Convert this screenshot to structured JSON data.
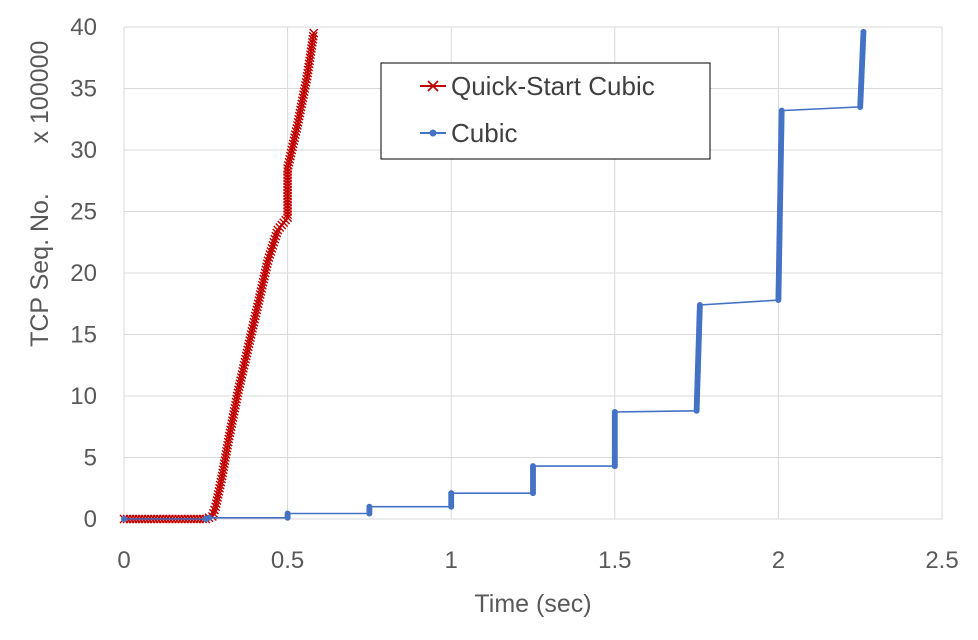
{
  "chart_data": {
    "type": "scatter",
    "title": "",
    "xlabel": "Time (sec)",
    "ylabel": "TCP Seq. No.",
    "yscale_label": "x 100000",
    "xlim": [
      0,
      2.5
    ],
    "ylim": [
      0,
      40
    ],
    "xticks": [
      "0",
      "0.5",
      "1",
      "1.5",
      "2",
      "2.5"
    ],
    "yticks": [
      "0",
      "5",
      "10",
      "15",
      "20",
      "25",
      "30",
      "35",
      "40"
    ],
    "grid": true,
    "legend_position": "top-center",
    "series": [
      {
        "name": "Quick-Start Cubic",
        "color": "#c00000",
        "marker": "x",
        "x": [
          0,
          0.25,
          0.27,
          0.28,
          0.3,
          0.32,
          0.35,
          0.38,
          0.41,
          0.44,
          0.47,
          0.5,
          0.5,
          0.53,
          0.56,
          0.58
        ],
        "y": [
          0,
          0,
          0.2,
          1.0,
          3.5,
          6.5,
          10.5,
          14,
          17.5,
          21,
          23.5,
          24.5,
          28.5,
          32,
          36,
          39.5
        ]
      },
      {
        "name": "Cubic",
        "color": "#4472c4",
        "marker": "dot",
        "x": [
          0,
          0.25,
          0.26,
          0.5,
          0.5,
          0.75,
          0.75,
          1.0,
          1.0,
          1.25,
          1.25,
          1.5,
          1.5,
          1.75,
          1.76,
          2.0,
          2.01,
          2.25,
          2.26
        ],
        "y": [
          0,
          0,
          0.1,
          0.1,
          0.45,
          0.45,
          1.0,
          1.0,
          2.1,
          2.1,
          4.3,
          4.3,
          8.7,
          8.8,
          17.4,
          17.8,
          33.2,
          33.5,
          39.6
        ]
      }
    ]
  }
}
